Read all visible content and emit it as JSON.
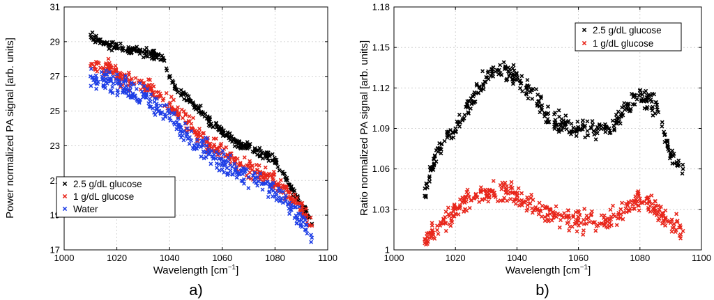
{
  "chart_data": [
    {
      "type": "scatter",
      "panel_label": "a)",
      "xlabel_base": "Wavelength [cm",
      "xlabel_sup": "−1",
      "xlabel_end": "]",
      "ylabel": "Power normalized PA signal [arb. units]",
      "xlim": [
        1000,
        1100
      ],
      "ylim": [
        17,
        31
      ],
      "xticks": [
        "1000",
        "1020",
        "1040",
        "1060",
        "1080",
        "1100"
      ],
      "yticks": [
        "17",
        "19",
        "21",
        "23",
        "25",
        "27",
        "29",
        "31"
      ],
      "grid": true,
      "legend_position": "bottom-left",
      "series": [
        {
          "name": "2.5 g/dL glucose",
          "color": "#000000",
          "x": [
            1010,
            1012,
            1015,
            1020,
            1025,
            1030,
            1035,
            1038,
            1040,
            1042,
            1045,
            1050,
            1055,
            1060,
            1065,
            1070,
            1075,
            1080,
            1083,
            1086,
            1090,
            1094
          ],
          "y": [
            29.4,
            29.2,
            28.9,
            28.7,
            28.5,
            28.4,
            28.2,
            27.9,
            27.0,
            26.4,
            26.0,
            25.3,
            24.5,
            23.8,
            23.2,
            22.9,
            22.6,
            22.2,
            21.4,
            20.6,
            19.6,
            18.5
          ]
        },
        {
          "name": "1 g/dL glucose",
          "color": "#e8261b",
          "x": [
            1010,
            1012,
            1015,
            1018,
            1020,
            1025,
            1030,
            1035,
            1040,
            1045,
            1050,
            1055,
            1060,
            1065,
            1070,
            1075,
            1080,
            1085,
            1090,
            1094
          ],
          "y": [
            27.6,
            27.4,
            27.4,
            27.5,
            27.0,
            26.7,
            26.4,
            26.1,
            25.4,
            24.6,
            23.8,
            23.1,
            22.6,
            22.1,
            21.7,
            21.3,
            20.9,
            20.3,
            19.4,
            18.4
          ]
        },
        {
          "name": "Water",
          "color": "#1f3fe6",
          "x": [
            1010,
            1012,
            1015,
            1020,
            1025,
            1030,
            1035,
            1040,
            1045,
            1050,
            1055,
            1060,
            1065,
            1070,
            1075,
            1080,
            1085,
            1090,
            1094
          ],
          "y": [
            27.0,
            26.9,
            26.8,
            26.6,
            26.2,
            25.8,
            25.3,
            24.6,
            23.8,
            23.1,
            22.5,
            22.0,
            21.6,
            21.2,
            20.8,
            20.3,
            19.6,
            18.7,
            17.7
          ]
        }
      ]
    },
    {
      "type": "scatter",
      "panel_label": "b)",
      "xlabel_base": "Wavelength [cm",
      "xlabel_sup": "−1",
      "xlabel_end": "]",
      "ylabel": "Ratio normalized PA signal [arb. units]",
      "xlim": [
        1000,
        1100
      ],
      "ylim": [
        1.0,
        1.18
      ],
      "xticks": [
        "1000",
        "1020",
        "1040",
        "1060",
        "1080",
        "1100"
      ],
      "yticks": [
        "1",
        "1.03",
        "1.06",
        "1.09",
        "1.12",
        "1.15",
        "1.18"
      ],
      "grid": true,
      "legend_position": "top-right",
      "series": [
        {
          "name": "2.5 g/dL glucose",
          "color": "#000000",
          "x": [
            1010,
            1012,
            1015,
            1018,
            1020,
            1023,
            1026,
            1030,
            1033,
            1036,
            1040,
            1043,
            1047,
            1050,
            1055,
            1060,
            1065,
            1070,
            1073,
            1076,
            1080,
            1083,
            1086,
            1088,
            1090,
            1094
          ],
          "y": [
            1.04,
            1.06,
            1.075,
            1.085,
            1.09,
            1.1,
            1.115,
            1.128,
            1.132,
            1.134,
            1.126,
            1.12,
            1.11,
            1.097,
            1.094,
            1.09,
            1.088,
            1.09,
            1.097,
            1.108,
            1.118,
            1.112,
            1.102,
            1.085,
            1.07,
            1.06
          ]
        },
        {
          "name": "1 g/dL glucose",
          "color": "#e8261b",
          "x": [
            1010,
            1012,
            1015,
            1018,
            1020,
            1023,
            1026,
            1030,
            1035,
            1040,
            1043,
            1046,
            1050,
            1055,
            1060,
            1065,
            1070,
            1073,
            1076,
            1080,
            1083,
            1086,
            1090,
            1094
          ],
          "y": [
            1.008,
            1.012,
            1.018,
            1.025,
            1.03,
            1.035,
            1.038,
            1.042,
            1.045,
            1.04,
            1.036,
            1.03,
            1.026,
            1.024,
            1.022,
            1.02,
            1.022,
            1.026,
            1.033,
            1.038,
            1.036,
            1.028,
            1.02,
            1.014
          ]
        }
      ]
    }
  ]
}
